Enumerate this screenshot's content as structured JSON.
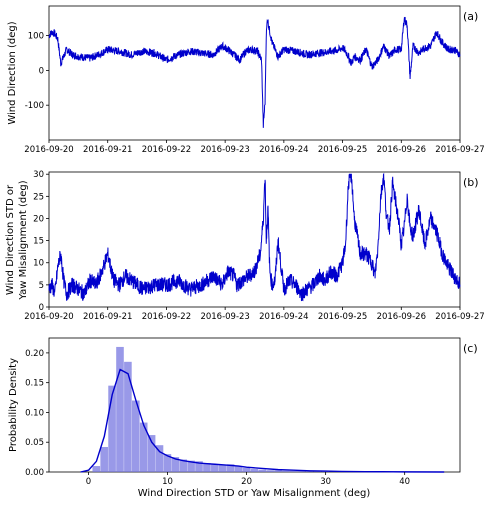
{
  "chart_data": [
    {
      "panel_label": "(a)",
      "type": "line",
      "ylabel": "Wind Direction (deg)",
      "xlabel": "",
      "x_ticks": [
        "2016-09-20",
        "2016-09-21",
        "2016-09-22",
        "2016-09-23",
        "2016-09-24",
        "2016-09-25",
        "2016-09-26",
        "2016-09-27"
      ],
      "xlim_days": [
        0,
        7
      ],
      "ylim": [
        -200,
        185
      ],
      "y_ticks": [
        -100,
        0,
        100
      ],
      "color": "#0000cc",
      "series": [
        {
          "x_days": [
            0,
            0.05,
            0.1,
            0.15,
            0.2,
            0.3,
            0.4,
            0.5,
            0.7,
            0.9,
            1.0,
            1.2,
            1.4,
            1.6,
            1.8,
            2.0,
            2.2,
            2.4,
            2.6,
            2.8,
            2.95,
            3.05,
            3.15,
            3.25,
            3.35,
            3.45,
            3.55,
            3.62,
            3.65,
            3.68,
            3.7,
            3.72,
            3.75,
            3.8,
            3.9,
            4.0,
            4.2,
            4.4,
            4.6,
            4.8,
            4.95,
            5.0,
            5.05,
            5.1,
            5.15,
            5.2,
            5.3,
            5.4,
            5.5,
            5.6,
            5.7,
            5.8,
            5.9,
            6.0,
            6.05,
            6.1,
            6.15,
            6.2,
            6.3,
            6.4,
            6.5,
            6.6,
            6.7,
            6.8,
            6.9,
            7.0
          ],
          "values": [
            100,
            110,
            105,
            90,
            20,
            60,
            45,
            40,
            35,
            50,
            60,
            55,
            45,
            55,
            50,
            30,
            45,
            55,
            50,
            45,
            70,
            60,
            45,
            30,
            55,
            60,
            55,
            30,
            -160,
            -90,
            100,
            150,
            120,
            80,
            40,
            60,
            55,
            45,
            50,
            55,
            60,
            65,
            55,
            40,
            20,
            40,
            30,
            60,
            10,
            30,
            70,
            40,
            60,
            60,
            150,
            130,
            -20,
            70,
            50,
            65,
            70,
            110,
            80,
            60,
            60,
            45
          ]
        }
      ]
    },
    {
      "panel_label": "(b)",
      "type": "line",
      "ylabel": "Wind Direction STD or\nYaw Misalignment (deg)",
      "xlabel": "",
      "x_ticks": [
        "2016-09-20",
        "2016-09-21",
        "2016-09-22",
        "2016-09-23",
        "2016-09-24",
        "2016-09-25",
        "2016-09-26",
        "2016-09-27"
      ],
      "xlim_days": [
        0,
        7
      ],
      "ylim": [
        0,
        30.5
      ],
      "y_ticks": [
        0,
        5,
        10,
        15,
        20,
        25,
        30
      ],
      "color": "#0000cc",
      "series": [
        {
          "x_days": [
            0,
            0.05,
            0.1,
            0.15,
            0.2,
            0.25,
            0.3,
            0.4,
            0.5,
            0.6,
            0.7,
            0.8,
            0.9,
            1.0,
            1.1,
            1.2,
            1.3,
            1.4,
            1.6,
            1.8,
            2.0,
            2.2,
            2.4,
            2.6,
            2.8,
            2.95,
            3.05,
            3.15,
            3.2,
            3.3,
            3.4,
            3.5,
            3.6,
            3.65,
            3.68,
            3.7,
            3.73,
            3.76,
            3.8,
            3.85,
            3.9,
            4.0,
            4.1,
            4.2,
            4.3,
            4.4,
            4.5,
            4.6,
            4.7,
            4.8,
            4.9,
            5.0,
            5.05,
            5.1,
            5.15,
            5.2,
            5.3,
            5.4,
            5.5,
            5.55,
            5.6,
            5.65,
            5.7,
            5.75,
            5.8,
            5.85,
            5.9,
            5.95,
            6.0,
            6.05,
            6.1,
            6.15,
            6.2,
            6.3,
            6.4,
            6.5,
            6.6,
            6.7,
            6.8,
            6.9,
            7.0
          ],
          "values": [
            4,
            5,
            3,
            9,
            12,
            6,
            3,
            5,
            4,
            3,
            6,
            5,
            8,
            12,
            6,
            5,
            7,
            6,
            4,
            5,
            5,
            6,
            4,
            5,
            7,
            5,
            8,
            7,
            5,
            6,
            7,
            8,
            12,
            20,
            30,
            15,
            22,
            8,
            5,
            6,
            15,
            4,
            6,
            5,
            3,
            4,
            5,
            7,
            6,
            8,
            7,
            10,
            14,
            28,
            30,
            20,
            12,
            12,
            10,
            7,
            13,
            25,
            30,
            20,
            18,
            28,
            24,
            20,
            14,
            18,
            25,
            18,
            16,
            22,
            14,
            20,
            17,
            12,
            9,
            7,
            5
          ]
        }
      ]
    },
    {
      "panel_label": "(c)",
      "type": "bar",
      "xlabel": "Wind Direction STD or Yaw Misalignment (deg)",
      "ylabel": "Probability Density",
      "xlim": [
        -5,
        47
      ],
      "ylim": [
        0,
        0.225
      ],
      "x_ticks": [
        0,
        10,
        20,
        30,
        40
      ],
      "y_ticks": [
        0.0,
        0.05,
        0.1,
        0.15,
        0.2
      ],
      "color": "#0000cc",
      "histogram": {
        "bin_edges": [
          0.5,
          1.5,
          2.5,
          3.5,
          4.5,
          5.5,
          6.5,
          7.5,
          8.5,
          9.5,
          10.5,
          11.5,
          12.5,
          13.5,
          14.5,
          15.5,
          16.5,
          17.5,
          18.5,
          19.5,
          20.5,
          21.5,
          22.5,
          23.5,
          24.5,
          25.5,
          26.5,
          27.5,
          28.5,
          29.5,
          30.5
        ],
        "values": [
          0.01,
          0.042,
          0.145,
          0.21,
          0.185,
          0.12,
          0.083,
          0.062,
          0.045,
          0.03,
          0.025,
          0.021,
          0.019,
          0.018,
          0.015,
          0.013,
          0.012,
          0.013,
          0.01,
          0.007,
          0.005,
          0.004,
          0.003,
          0.003,
          0.002,
          0.002,
          0.002,
          0.001,
          0.001,
          0.002
        ]
      },
      "kde": {
        "x": [
          -1,
          0,
          1,
          2,
          3,
          4,
          5,
          6,
          7,
          8,
          9,
          10,
          11,
          12,
          13,
          14,
          15,
          16,
          17,
          18,
          19,
          20,
          22,
          24,
          26,
          28,
          30,
          32,
          35,
          40,
          45
        ],
        "values": [
          0,
          0.003,
          0.018,
          0.06,
          0.13,
          0.172,
          0.165,
          0.12,
          0.078,
          0.05,
          0.034,
          0.027,
          0.022,
          0.019,
          0.017,
          0.015,
          0.014,
          0.013,
          0.012,
          0.011,
          0.01,
          0.008,
          0.006,
          0.004,
          0.003,
          0.002,
          0.0015,
          0.001,
          0.0006,
          0.0002,
          0
        ]
      }
    }
  ]
}
